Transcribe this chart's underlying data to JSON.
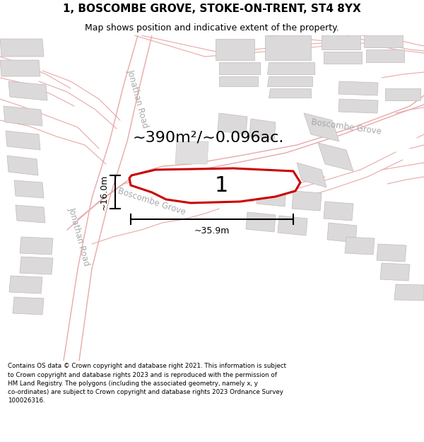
{
  "title": "1, BOSCOMBE GROVE, STOKE-ON-TRENT, ST4 8YX",
  "subtitle": "Map shows position and indicative extent of the property.",
  "footer_text": "Contains OS data © Crown copyright and database right 2021. This information is subject to Crown copyright and database rights 2023 and is reproduced with the permission of HM Land Registry. The polygons (including the associated geometry, namely x, y co-ordinates) are subject to Crown copyright and database rights 2023 Ordnance Survey 100026316.",
  "area_text": "~390m²/~0.096ac.",
  "width_text": "~35.9m",
  "height_text": "~16.0m",
  "plot_number": "1",
  "map_bg": "#f7f6f6",
  "title_bg": "#ffffff",
  "footer_bg": "#ffffff",
  "road_color": "#e8a8a8",
  "road_lw": 1.0,
  "building_color": "#dbd9d9",
  "building_edge": "#c0bbbb",
  "plot_fill": "#ffffff",
  "plot_edge_color": "#cc0000",
  "plot_lw": 2.2,
  "dim_color": "#000000",
  "road_label_color": "#aaaaaa",
  "title_fontsize": 11,
  "subtitle_fontsize": 9,
  "area_fontsize": 16,
  "plot_num_fontsize": 22,
  "dim_fontsize": 9,
  "footer_fontsize": 6.3
}
